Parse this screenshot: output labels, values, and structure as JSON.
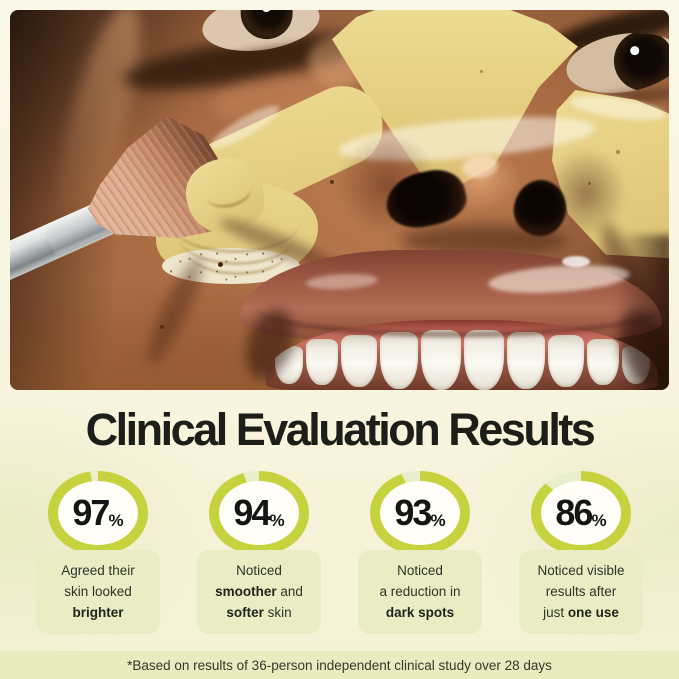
{
  "header": {
    "title": "Clinical Evaluation Results"
  },
  "stats": [
    {
      "value": "97",
      "unit": "%",
      "percent": 97,
      "lines": [
        [
          {
            "t": "Agreed their",
            "b": false
          }
        ],
        [
          {
            "t": "skin looked",
            "b": false
          }
        ],
        [
          {
            "t": "brighter",
            "b": true
          }
        ]
      ]
    },
    {
      "value": "94",
      "unit": "%",
      "percent": 94,
      "lines": [
        [
          {
            "t": "Noticed",
            "b": false
          }
        ],
        [
          {
            "t": "smoother",
            "b": true
          },
          {
            "t": " and",
            "b": false
          }
        ],
        [
          {
            "t": "softer",
            "b": true
          },
          {
            "t": " skin",
            "b": false
          }
        ]
      ]
    },
    {
      "value": "93",
      "unit": "%",
      "percent": 93,
      "lines": [
        [
          {
            "t": "Noticed",
            "b": false
          }
        ],
        [
          {
            "t": "a reduction in",
            "b": false
          }
        ],
        [
          {
            "t": "dark spots",
            "b": true
          }
        ]
      ]
    },
    {
      "value": "86",
      "unit": "%",
      "percent": 86,
      "lines": [
        [
          {
            "t": "Noticed visible",
            "b": false
          }
        ],
        [
          {
            "t": "results after",
            "b": false
          }
        ],
        [
          {
            "t": "just ",
            "b": false
          },
          {
            "t": "one use",
            "b": true
          }
        ]
      ]
    }
  ],
  "footnote": "*Based on results of 36-person independent clinical study over 28 days",
  "colors": {
    "accent_green": "#c6d23e",
    "ring_track": "#e9eecb",
    "card_bg": "#eaedc3",
    "strip_bg": "#e9ecbe",
    "heading_text": "#1d1d1a",
    "body_text": "#2e3229",
    "page_bg": "#f7f3da"
  }
}
